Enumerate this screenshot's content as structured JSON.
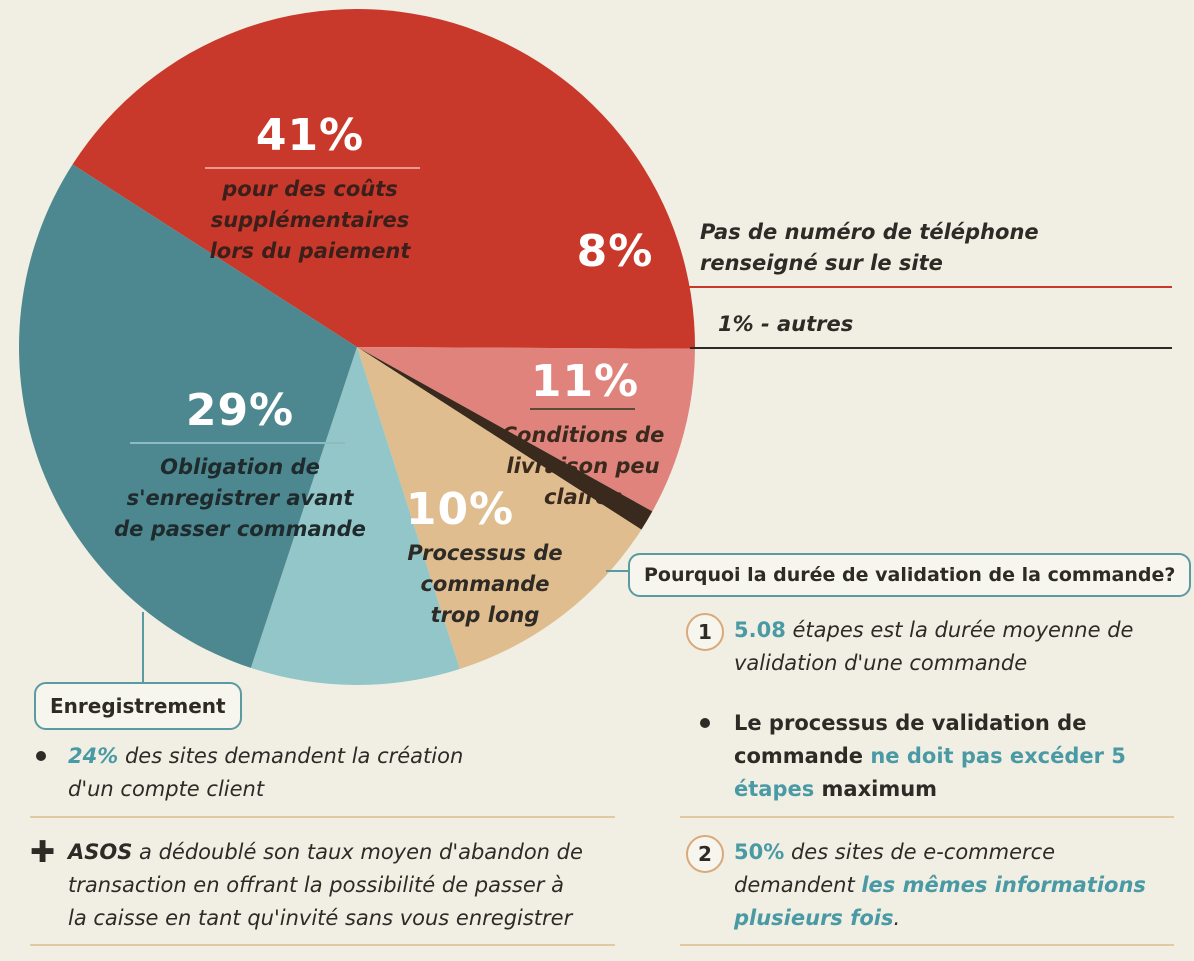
{
  "chart_data": {
    "type": "pie",
    "slices": [
      {
        "label": "pour des coûts supplémentaires lors du paiement",
        "value": 41,
        "color": "#c9392b"
      },
      {
        "label": "Pas de numéro de téléphone renseigné sur le site",
        "value": 8,
        "color": "#e0837c"
      },
      {
        "label": "autres",
        "value": 1,
        "color": "#3a2a1e"
      },
      {
        "label": "Conditions de livraison peu claires",
        "value": 11,
        "color": "#dfbd8f"
      },
      {
        "label": "Processus de commande trop long",
        "value": 10,
        "color": "#93c6c8"
      },
      {
        "label": "Obligation de s'enregistrer avant de passer commande",
        "value": 29,
        "color": "#4d8890"
      }
    ]
  },
  "labels": {
    "s41_pct": "41%",
    "s41_desc": [
      "pour des coûts",
      "supplémentaires",
      "lors du paiement"
    ],
    "s8_pct": "8%",
    "s8_desc": [
      "Pas de numéro de téléphone",
      "renseigné sur le site"
    ],
    "s1_text": "1% - autres",
    "s11_pct": "11%",
    "s11_desc": [
      "Conditions de",
      "livraison peu",
      "claires"
    ],
    "s10_pct": "10%",
    "s10_desc": [
      "Processus de",
      "commande",
      "trop long"
    ],
    "s29_pct": "29%",
    "s29_desc": [
      "Obligation de",
      "s'enregistrer avant",
      "de passer commande"
    ]
  },
  "left_panel": {
    "title": "Enregistrement",
    "item1_hl": "24%",
    "item1_text": " des sites demandent la création",
    "item1_text2": "d'un compte client",
    "item2_bold": "ASOS",
    "item2_text": " a dédoublé son taux moyen d'abandon de",
    "item2_text2": "transaction en offrant la possibilité de passer à",
    "item2_text3": "la caisse en tant qu'invité sans vous enregistrer"
  },
  "right_panel": {
    "title": "Pourquoi la durée de validation de la commande?",
    "n1": "1",
    "item1_hl": "5.08",
    "item1_text": " étapes est la durée moyenne de",
    "item1_text2": "validation d'une commande",
    "item2_a": "Le processus de validation de",
    "item2_b": "commande",
    "item2_hl": " ne doit pas excéder 5",
    "item2_hl2": "étapes",
    "item2_c": " maximum",
    "n2": "2",
    "item3_hl": "50%",
    "item3_text": " des sites de e-commerce",
    "item3_b": "demandent ",
    "item3_hl2": "les mêmes informations",
    "item3_hl3": "plusieurs fois",
    "item3_end": "."
  },
  "colors": {
    "red": "#c9392b",
    "pink": "#e0837c",
    "dark": "#3a2a1e",
    "tan": "#dfbd8f",
    "lightteal": "#93c6c8",
    "teal": "#4d8890",
    "highlight": "#4a9aa5"
  }
}
